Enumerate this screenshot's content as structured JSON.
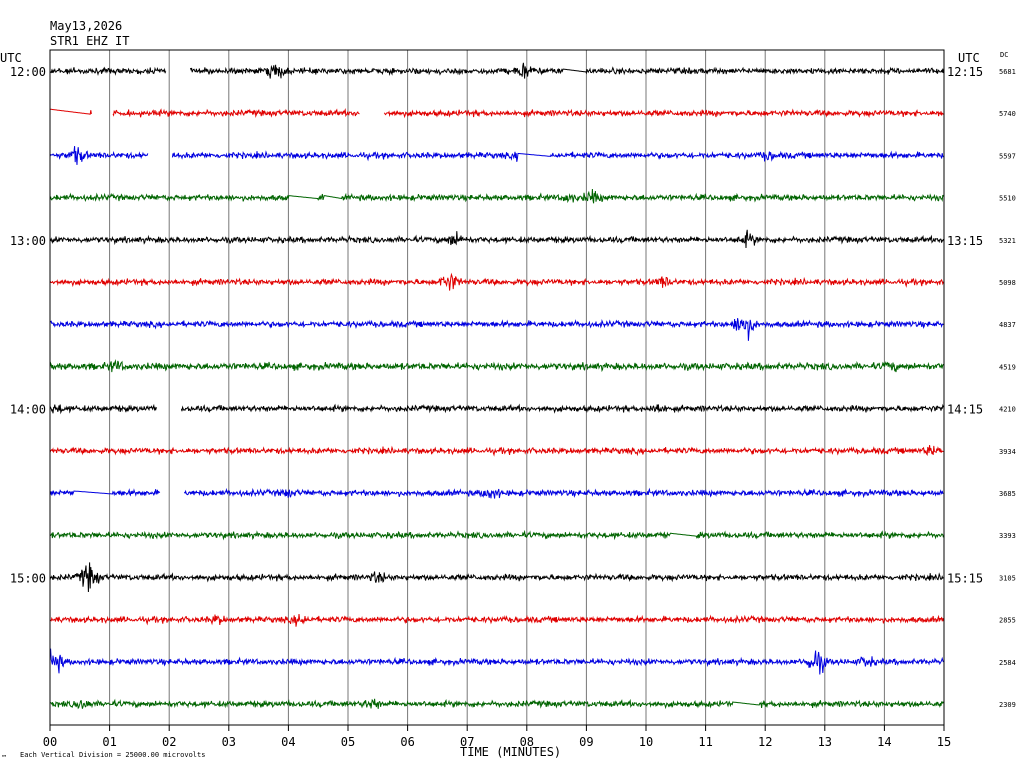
{
  "header": {
    "date": "May13,2026",
    "station": "STR1 EHZ IT"
  },
  "chart_data": {
    "type": "line",
    "kind": "helicorder",
    "xlabel": "TIME (MINUTES)",
    "x_ticks": [
      "00",
      "01",
      "02",
      "03",
      "04",
      "05",
      "06",
      "07",
      "08",
      "09",
      "10",
      "11",
      "12",
      "13",
      "14",
      "15"
    ],
    "xlim": [
      0,
      15
    ],
    "left_axis_label": "UTC",
    "right_axis_label": "UTC",
    "dc_label": "DC",
    "footer": "Each Vertical Division = 25000.00 microvolts",
    "corner_mark": "™",
    "trace_colors": [
      "#000000",
      "#e00000",
      "#0000e0",
      "#006400"
    ],
    "hour_labels_left": [
      {
        "row": 0,
        "label": "12:00"
      },
      {
        "row": 4,
        "label": "13:00"
      },
      {
        "row": 8,
        "label": "14:00"
      },
      {
        "row": 12,
        "label": "15:00"
      }
    ],
    "hour_labels_right": [
      {
        "row": 0,
        "label": "12:15"
      },
      {
        "row": 4,
        "label": "13:15"
      },
      {
        "row": 8,
        "label": "14:15"
      },
      {
        "row": 12,
        "label": "15:15"
      }
    ],
    "dc_values": [
      "5681",
      "5740",
      "5597",
      "5510",
      "5321",
      "5098",
      "4837",
      "4519",
      "4210",
      "3934",
      "3685",
      "3393",
      "3105",
      "2855",
      "2584",
      "2309"
    ],
    "traces": [
      {
        "noise": 3,
        "gaps": [
          [
            1.95,
            2.35
          ]
        ],
        "flats": [
          [
            8.6,
            9.0
          ]
        ],
        "events": [
          [
            3.8,
            9
          ],
          [
            7.95,
            8
          ]
        ]
      },
      {
        "noise": 3,
        "gaps": [
          [
            0.7,
            1.05
          ],
          [
            5.2,
            5.6
          ]
        ],
        "flats": [
          [
            0.0,
            0.68
          ]
        ],
        "events": [],
        "offset_start": -4
      },
      {
        "noise": 3,
        "gaps": [
          [
            1.65,
            2.05
          ]
        ],
        "flats": [
          [
            7.85,
            8.4
          ]
        ],
        "events": [
          [
            0.45,
            9
          ],
          [
            7.95,
            7
          ],
          [
            12.05,
            5
          ]
        ]
      },
      {
        "noise": 3,
        "gaps": [],
        "flats": [
          [
            4.0,
            4.5
          ],
          [
            4.6,
            4.9
          ]
        ],
        "events": [
          [
            9.1,
            7
          ],
          [
            8.7,
            5
          ]
        ]
      },
      {
        "noise": 3,
        "gaps": [],
        "flats": [],
        "events": [
          [
            6.8,
            8
          ],
          [
            11.7,
            7
          ]
        ]
      },
      {
        "noise": 3,
        "gaps": [],
        "flats": [],
        "events": [
          [
            6.7,
            10
          ],
          [
            10.3,
            6
          ]
        ]
      },
      {
        "noise": 3,
        "gaps": [],
        "flats": [],
        "events": [
          [
            11.65,
            16
          ]
        ]
      },
      {
        "noise": 3.5,
        "gaps": [],
        "flats": [],
        "events": [
          [
            1.1,
            6
          ],
          [
            14.1,
            5
          ]
        ]
      },
      {
        "noise": 3,
        "gaps": [
          [
            1.8,
            2.2
          ]
        ],
        "flats": [],
        "events": [
          [
            0.1,
            5
          ],
          [
            10.2,
            6
          ]
        ]
      },
      {
        "noise": 3,
        "gaps": [],
        "flats": [],
        "events": [
          [
            14.8,
            6
          ]
        ]
      },
      {
        "noise": 3,
        "gaps": [
          [
            1.85,
            2.25
          ]
        ],
        "flats": [
          [
            0.4,
            1.05
          ]
        ],
        "events": [
          [
            7.4,
            7
          ],
          [
            4.0,
            5
          ]
        ]
      },
      {
        "noise": 3,
        "gaps": [],
        "flats": [
          [
            10.4,
            10.85
          ]
        ],
        "events": []
      },
      {
        "noise": 3,
        "gaps": [],
        "flats": [],
        "events": [
          [
            0.65,
            14
          ],
          [
            5.5,
            6
          ]
        ]
      },
      {
        "noise": 3,
        "gaps": [],
        "flats": [],
        "events": [
          [
            4.2,
            6
          ],
          [
            2.8,
            5
          ]
        ]
      },
      {
        "noise": 3,
        "gaps": [],
        "flats": [],
        "events": [
          [
            0.05,
            14
          ],
          [
            12.85,
            14
          ],
          [
            13.7,
            6
          ]
        ]
      },
      {
        "noise": 3,
        "gaps": [],
        "flats": [
          [
            11.45,
            11.9
          ]
        ],
        "events": [
          [
            0.55,
            6
          ],
          [
            5.4,
            6
          ]
        ]
      }
    ]
  }
}
